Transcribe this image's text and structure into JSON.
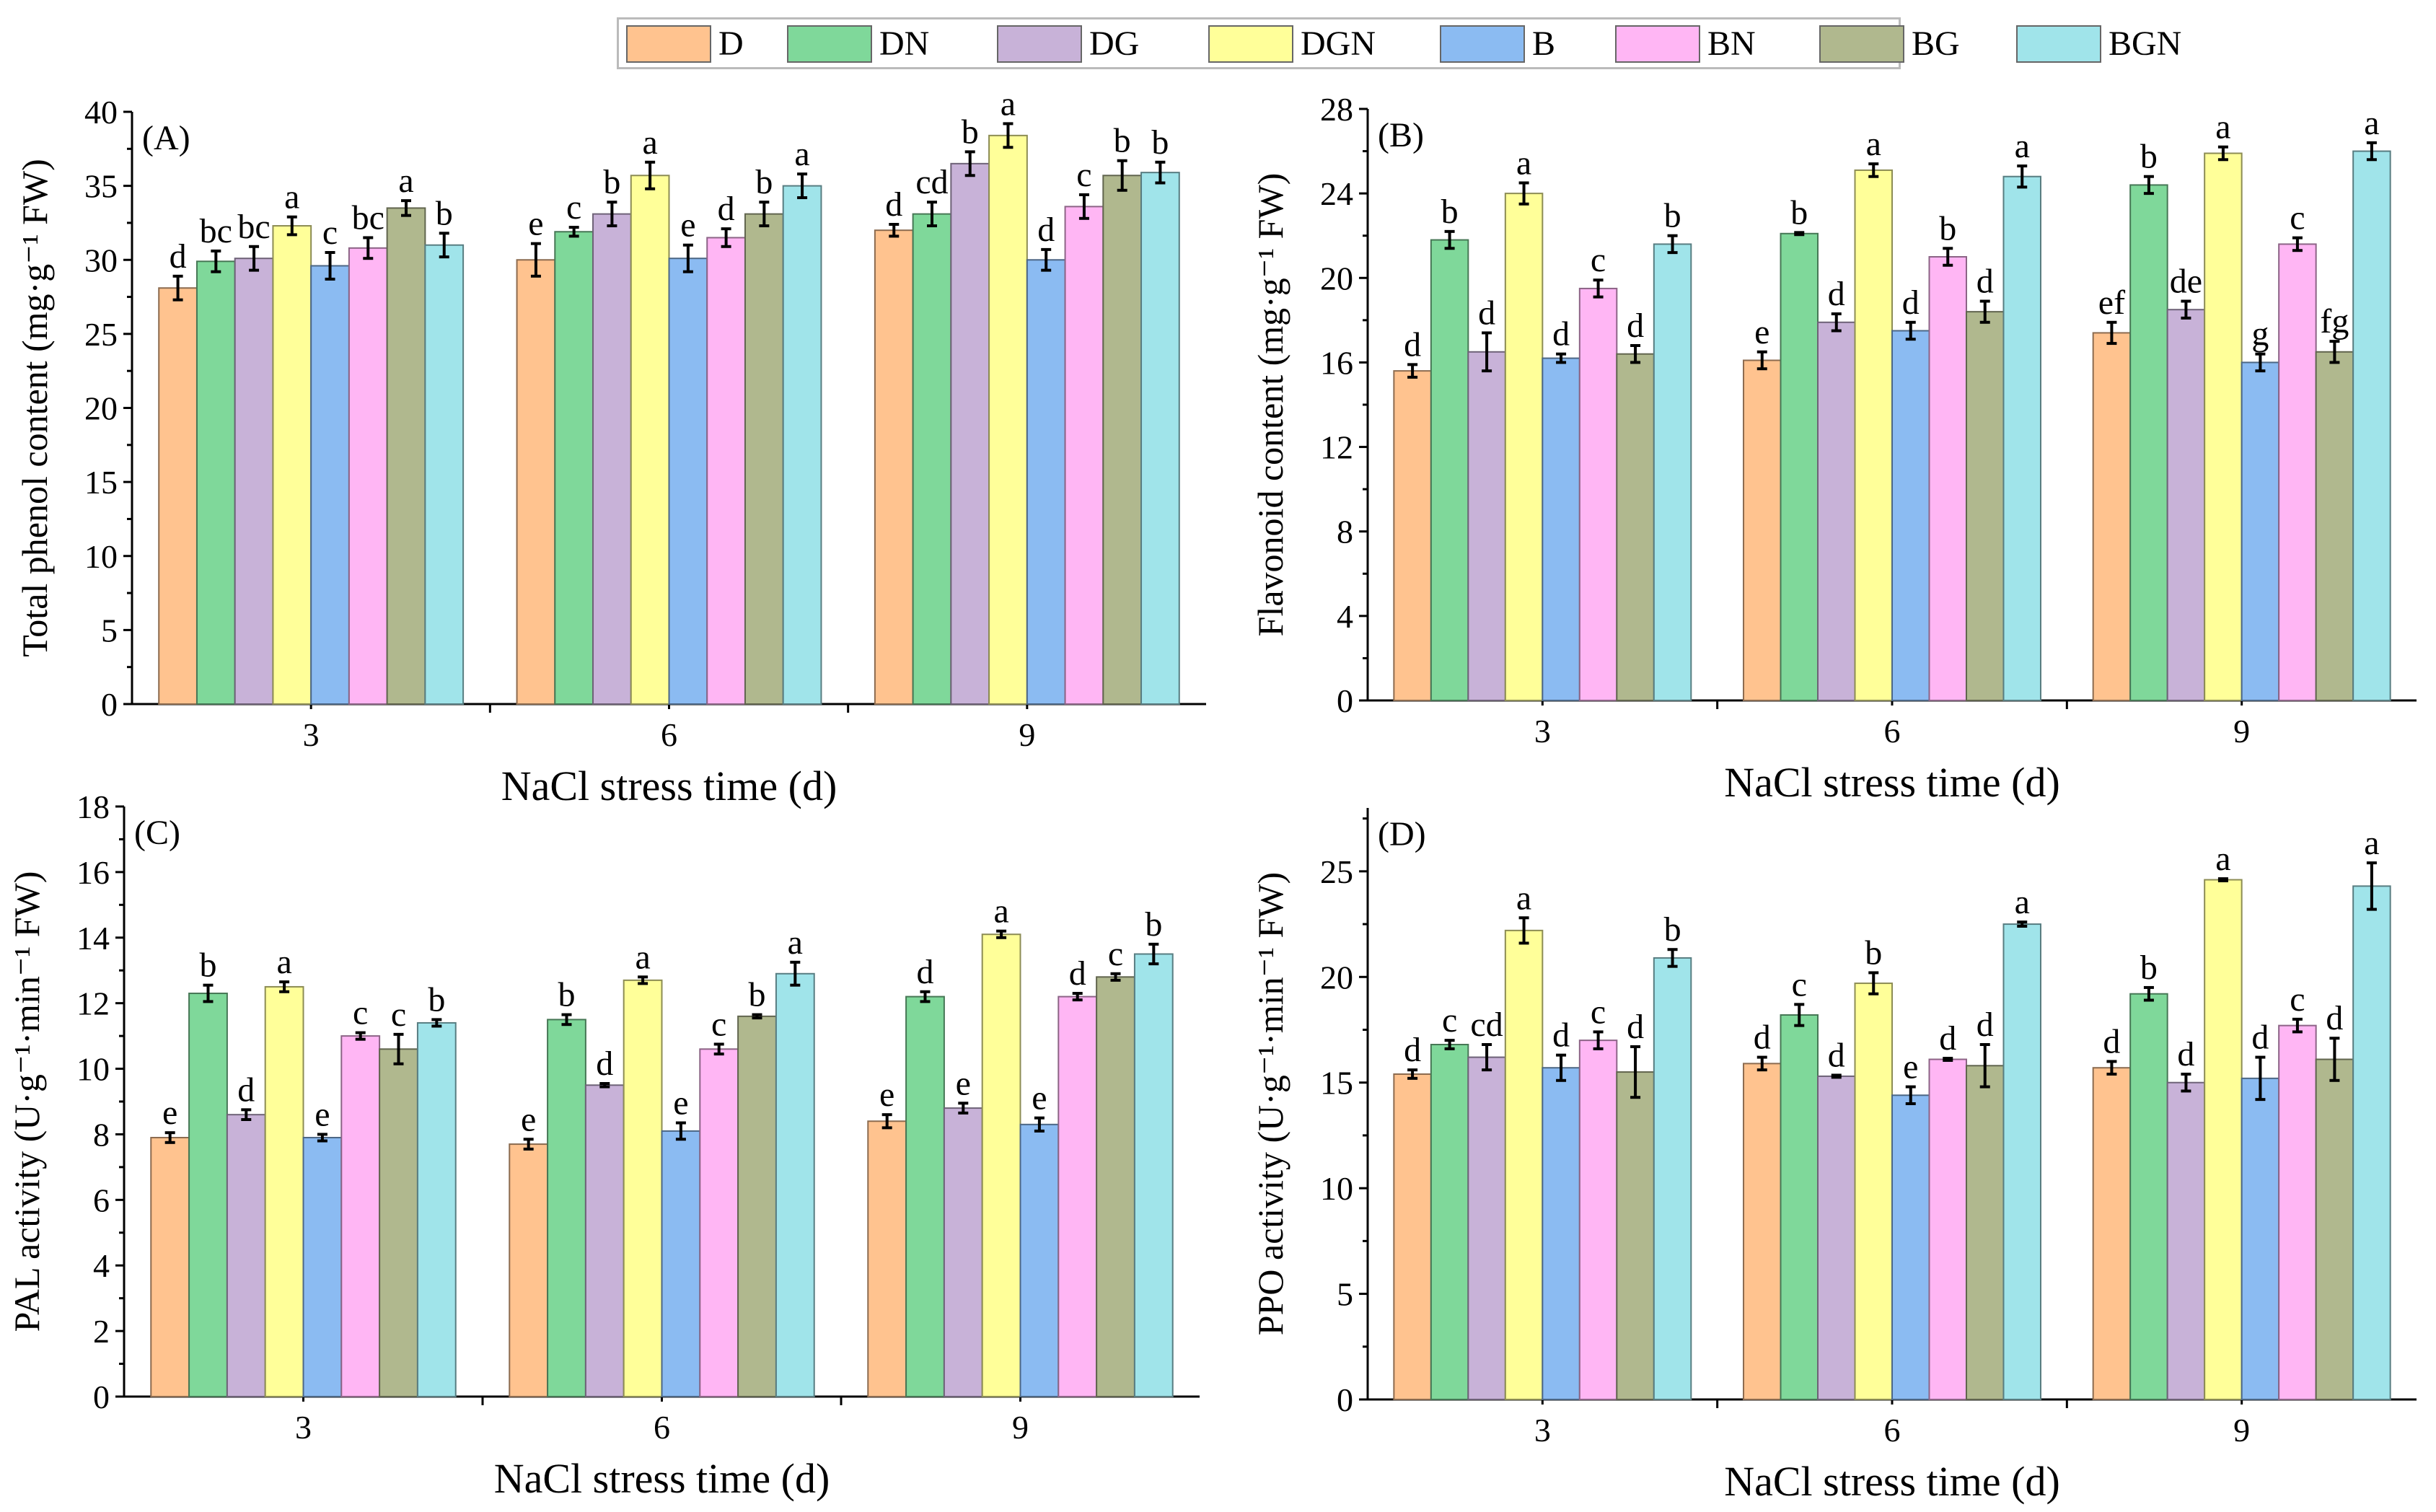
{
  "legend": {
    "items": [
      {
        "label": "D",
        "color": "#FFC38F"
      },
      {
        "label": "DN",
        "color": "#7FD89A"
      },
      {
        "label": "DG",
        "color": "#C8B2D8"
      },
      {
        "label": "DGN",
        "color": "#FFFF99"
      },
      {
        "label": "B",
        "color": "#8BBBF2"
      },
      {
        "label": "BN",
        "color": "#FFB6F4"
      },
      {
        "label": "BG",
        "color": "#B0B88E"
      },
      {
        "label": "BGN",
        "color": "#A0E4EA"
      }
    ],
    "placement": "top-center"
  },
  "chart_data": [
    {
      "type": "bar",
      "panel": "(A)",
      "ylabel": "Total phenol content (mg·g⁻¹ FW)",
      "xlabel": "NaCl stress time (d)",
      "categories": [
        "3",
        "6",
        "9"
      ],
      "ylim": [
        0,
        40
      ],
      "yticks": [
        0,
        5,
        10,
        15,
        20,
        25,
        30,
        35,
        40
      ],
      "series": [
        {
          "name": "D",
          "values": [
            28.1,
            30.0,
            32.0
          ],
          "errors": [
            0.8,
            1.1,
            0.4
          ],
          "letters": [
            "d",
            "e",
            "d"
          ]
        },
        {
          "name": "DN",
          "values": [
            29.9,
            31.9,
            33.1
          ],
          "errors": [
            0.7,
            0.3,
            0.8
          ],
          "letters": [
            "bc",
            "c",
            "cd"
          ]
        },
        {
          "name": "DG",
          "values": [
            30.1,
            33.1,
            36.5
          ],
          "errors": [
            0.8,
            0.8,
            0.8
          ],
          "letters": [
            "bc",
            "b",
            "b"
          ]
        },
        {
          "name": "DGN",
          "values": [
            32.3,
            35.7,
            38.4
          ],
          "errors": [
            0.6,
            0.9,
            0.8
          ],
          "letters": [
            "a",
            "a",
            "a"
          ]
        },
        {
          "name": "B",
          "values": [
            29.6,
            30.1,
            30.0
          ],
          "errors": [
            0.9,
            0.9,
            0.7
          ],
          "letters": [
            "c",
            "e",
            "d"
          ]
        },
        {
          "name": "BN",
          "values": [
            30.8,
            31.5,
            33.6
          ],
          "errors": [
            0.7,
            0.6,
            0.8
          ],
          "letters": [
            "bc",
            "d",
            "c"
          ]
        },
        {
          "name": "BG",
          "values": [
            33.5,
            33.1,
            35.7
          ],
          "errors": [
            0.5,
            0.8,
            1.0
          ],
          "letters": [
            "a",
            "b",
            "b"
          ]
        },
        {
          "name": "BGN",
          "values": [
            31.0,
            35.0,
            35.9
          ],
          "errors": [
            0.8,
            0.8,
            0.7
          ],
          "letters": [
            "b",
            "a",
            "b"
          ]
        }
      ]
    },
    {
      "type": "bar",
      "panel": "(B)",
      "ylabel": "Flavonoid content (mg·g⁻¹ FW)",
      "xlabel": "NaCl stress time (d)",
      "categories": [
        "3",
        "6",
        "9"
      ],
      "ylim": [
        0,
        28
      ],
      "yticks": [
        0,
        4,
        8,
        12,
        16,
        20,
        24,
        28
      ],
      "series": [
        {
          "name": "D",
          "values": [
            15.6,
            16.1,
            17.4
          ],
          "errors": [
            0.3,
            0.4,
            0.5
          ],
          "letters": [
            "d",
            "e",
            "ef"
          ]
        },
        {
          "name": "DN",
          "values": [
            21.8,
            22.1,
            24.4
          ],
          "errors": [
            0.4,
            0.05,
            0.4
          ],
          "letters": [
            "b",
            "b",
            "b"
          ]
        },
        {
          "name": "DG",
          "values": [
            16.5,
            17.9,
            18.5
          ],
          "errors": [
            0.9,
            0.4,
            0.4
          ],
          "letters": [
            "d",
            "d",
            "de"
          ]
        },
        {
          "name": "DGN",
          "values": [
            24.0,
            25.1,
            25.9
          ],
          "errors": [
            0.5,
            0.3,
            0.3
          ],
          "letters": [
            "a",
            "a",
            "a"
          ]
        },
        {
          "name": "B",
          "values": [
            16.2,
            17.5,
            16.0
          ],
          "errors": [
            0.2,
            0.4,
            0.4
          ],
          "letters": [
            "d",
            "d",
            "g"
          ]
        },
        {
          "name": "BN",
          "values": [
            19.5,
            21.0,
            21.6
          ],
          "errors": [
            0.4,
            0.4,
            0.3
          ],
          "letters": [
            "c",
            "b",
            "c"
          ]
        },
        {
          "name": "BG",
          "values": [
            16.4,
            18.4,
            16.5
          ],
          "errors": [
            0.4,
            0.5,
            0.5
          ],
          "letters": [
            "d",
            "d",
            "fg"
          ]
        },
        {
          "name": "BGN",
          "values": [
            21.6,
            24.8,
            26.0
          ],
          "errors": [
            0.4,
            0.5,
            0.4
          ],
          "letters": [
            "b",
            "a",
            "a"
          ]
        }
      ]
    },
    {
      "type": "bar",
      "panel": "(C)",
      "ylabel": "PAL activity (U·g⁻¹·min⁻¹ FW)",
      "xlabel": "NaCl stress time (d)",
      "categories": [
        "3",
        "6",
        "9"
      ],
      "ylim": [
        0,
        18
      ],
      "yticks": [
        0,
        2,
        4,
        6,
        8,
        10,
        12,
        14,
        16,
        18
      ],
      "series": [
        {
          "name": "D",
          "values": [
            7.9,
            7.7,
            8.4
          ],
          "errors": [
            0.15,
            0.15,
            0.2
          ],
          "letters": [
            "e",
            "e",
            "e"
          ]
        },
        {
          "name": "DN",
          "values": [
            12.3,
            11.5,
            12.2
          ],
          "errors": [
            0.25,
            0.15,
            0.15
          ],
          "letters": [
            "b",
            "b",
            "d"
          ]
        },
        {
          "name": "DG",
          "values": [
            8.6,
            9.5,
            8.8
          ],
          "errors": [
            0.15,
            0.05,
            0.15
          ],
          "letters": [
            "d",
            "d",
            "e"
          ]
        },
        {
          "name": "DGN",
          "values": [
            12.5,
            12.7,
            14.1
          ],
          "errors": [
            0.15,
            0.1,
            0.1
          ],
          "letters": [
            "a",
            "a",
            "a"
          ]
        },
        {
          "name": "B",
          "values": [
            7.9,
            8.1,
            8.3
          ],
          "errors": [
            0.1,
            0.25,
            0.2
          ],
          "letters": [
            "e",
            "e",
            "e"
          ]
        },
        {
          "name": "BN",
          "values": [
            11.0,
            10.6,
            12.2
          ],
          "errors": [
            0.1,
            0.15,
            0.1
          ],
          "letters": [
            "c",
            "c",
            "d"
          ]
        },
        {
          "name": "BG",
          "values": [
            10.6,
            11.6,
            12.8
          ],
          "errors": [
            0.45,
            0.05,
            0.1
          ],
          "letters": [
            "c",
            "b",
            "c"
          ]
        },
        {
          "name": "BGN",
          "values": [
            11.4,
            12.9,
            13.5
          ],
          "errors": [
            0.1,
            0.35,
            0.3
          ],
          "letters": [
            "b",
            "a",
            "b"
          ]
        }
      ]
    },
    {
      "type": "bar",
      "panel": "(D)",
      "ylabel": "PPO activity (U·g⁻¹·min⁻¹ FW)",
      "xlabel": "NaCl stress time (d)",
      "categories": [
        "3",
        "6",
        "9"
      ],
      "ylim": [
        0,
        28
      ],
      "yticks": [
        0,
        5,
        10,
        15,
        20,
        25
      ],
      "series": [
        {
          "name": "D",
          "values": [
            15.4,
            15.9,
            15.7
          ],
          "errors": [
            0.2,
            0.3,
            0.3
          ],
          "letters": [
            "d",
            "d",
            "d"
          ]
        },
        {
          "name": "DN",
          "values": [
            16.8,
            18.2,
            19.2
          ],
          "errors": [
            0.2,
            0.5,
            0.3
          ],
          "letters": [
            "c",
            "c",
            "b"
          ]
        },
        {
          "name": "DG",
          "values": [
            16.2,
            15.3,
            15.0
          ],
          "errors": [
            0.6,
            0.05,
            0.4
          ],
          "letters": [
            "cd",
            "d",
            "d"
          ]
        },
        {
          "name": "DGN",
          "values": [
            22.2,
            19.7,
            24.6
          ],
          "errors": [
            0.6,
            0.5,
            0.05
          ],
          "letters": [
            "a",
            "b",
            "a"
          ]
        },
        {
          "name": "B",
          "values": [
            15.7,
            14.4,
            15.2
          ],
          "errors": [
            0.6,
            0.4,
            1.0
          ],
          "letters": [
            "d",
            "e",
            "d"
          ]
        },
        {
          "name": "BN",
          "values": [
            17.0,
            16.1,
            17.7
          ],
          "errors": [
            0.4,
            0.05,
            0.3
          ],
          "letters": [
            "c",
            "d",
            "c"
          ]
        },
        {
          "name": "BG",
          "values": [
            15.5,
            15.8,
            16.1
          ],
          "errors": [
            1.2,
            1.0,
            1.0
          ],
          "letters": [
            "d",
            "d",
            "d"
          ]
        },
        {
          "name": "BGN",
          "values": [
            20.9,
            22.5,
            24.3
          ],
          "errors": [
            0.4,
            0.1,
            1.1
          ],
          "letters": [
            "b",
            "a",
            "a"
          ]
        }
      ]
    }
  ]
}
